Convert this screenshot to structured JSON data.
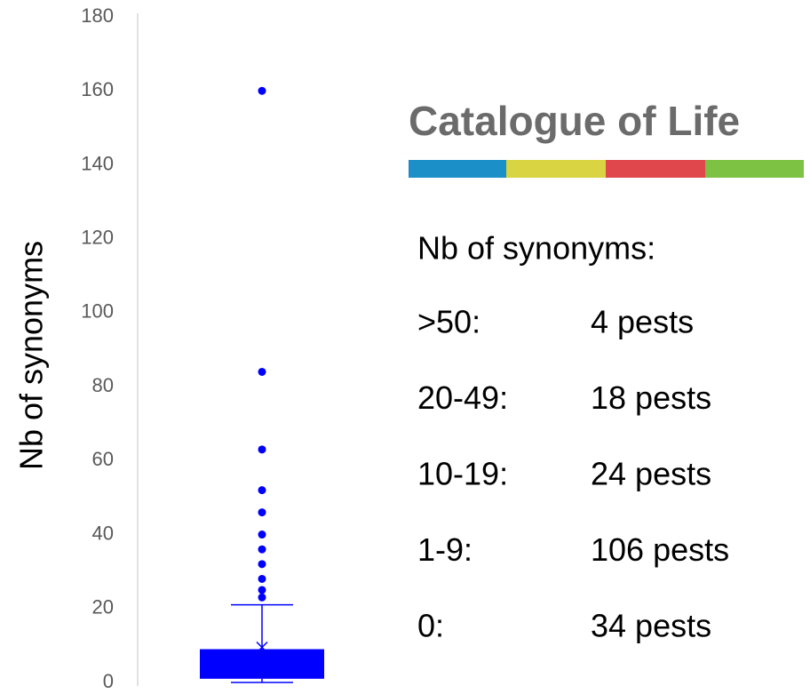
{
  "chart_data": {
    "type": "box",
    "y_label": "Nb of synonyms",
    "ylim": [
      0,
      180
    ],
    "yticks": [
      0,
      20,
      40,
      60,
      80,
      100,
      120,
      140,
      160,
      180
    ],
    "color": "#0000ff",
    "box": {
      "whisker_low": 0,
      "q1": 1,
      "q3": 9,
      "whisker_high": 21,
      "mean": 9.5
    },
    "outliers": [
      160,
      84,
      63,
      52,
      46,
      40,
      36,
      32,
      28,
      25,
      23
    ],
    "logo": "Catalogue of Life",
    "summary": {
      "heading": "Nb of synonyms:",
      "rows": [
        [
          ">50:",
          "4 pests"
        ],
        [
          "20-49:",
          "18 pests"
        ],
        [
          "10-19:",
          "24 pests"
        ],
        [
          "1-9:",
          "106 pests"
        ],
        [
          "0:",
          "34 pests"
        ]
      ]
    }
  }
}
